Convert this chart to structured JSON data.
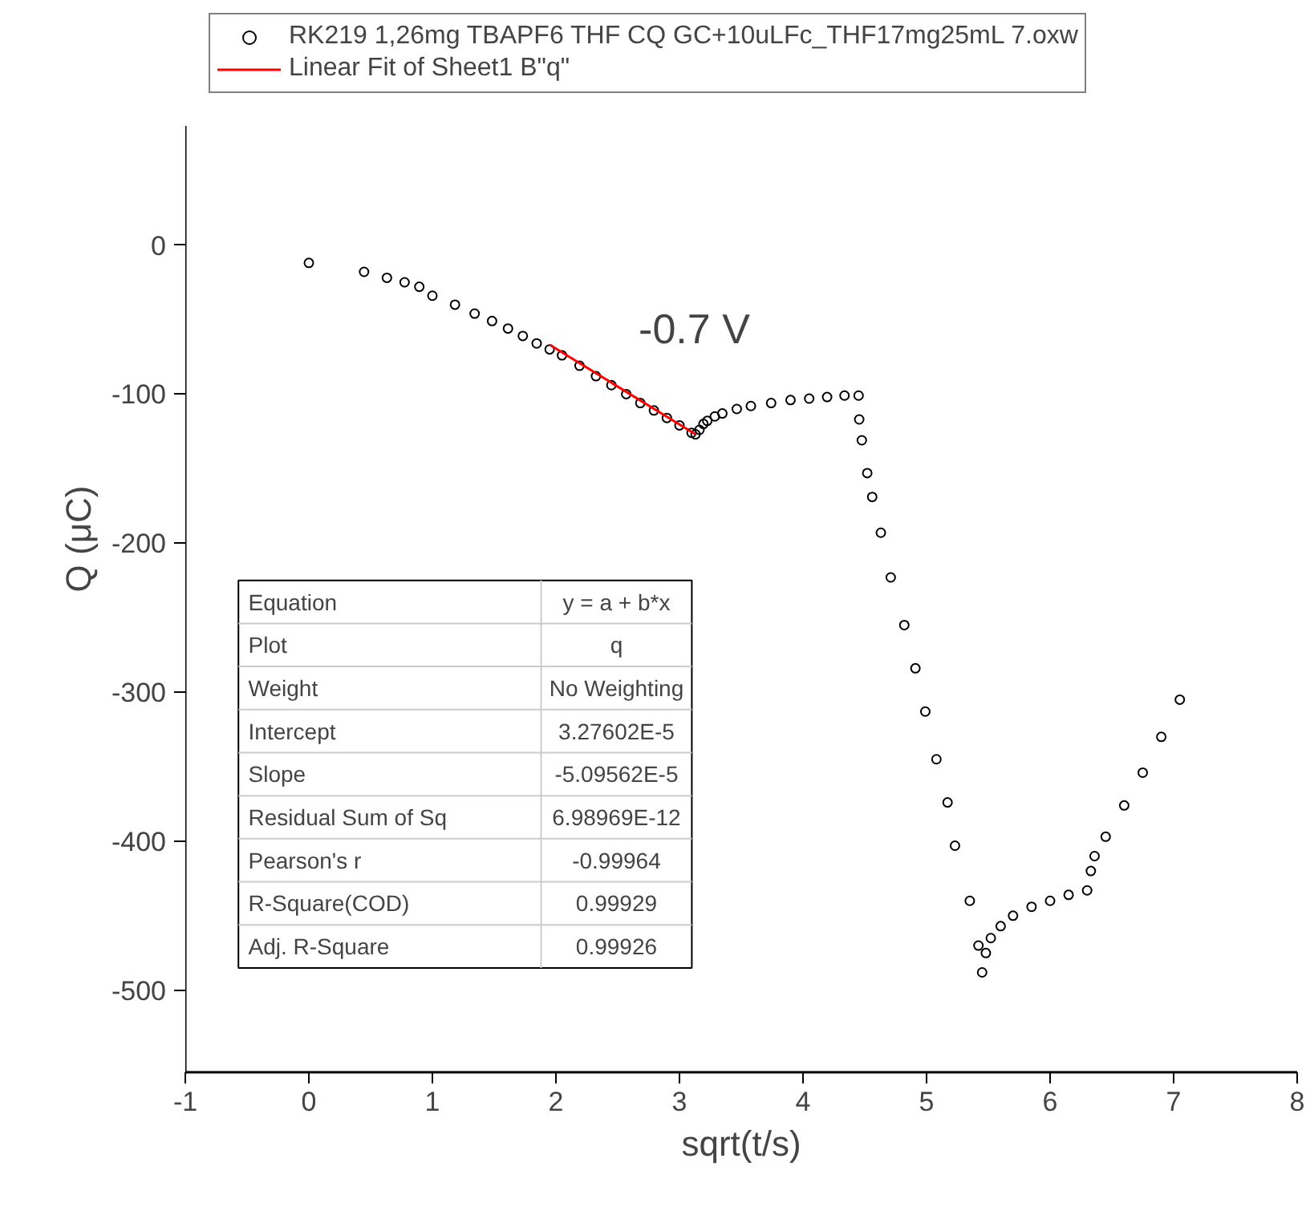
{
  "chart_data": {
    "type": "scatter",
    "xlabel": "sqrt(t/s)",
    "ylabel": "Q (μC)",
    "xlim": [
      -1,
      8
    ],
    "ylim": [
      -555,
      80
    ],
    "xticks": [
      -1,
      0,
      1,
      2,
      3,
      4,
      5,
      6,
      7,
      8
    ],
    "yticks": [
      -500,
      -400,
      -300,
      -200,
      -100,
      0
    ],
    "grid": false,
    "legend": "top",
    "series": [
      {
        "name": "RK219 1,26mg TBAPF6 THF CQ GC+10uLFc_THF17mg25mL 7.oxw",
        "color": "#000000",
        "marker": "circle",
        "x": [
          0,
          0.447,
          0.632,
          0.775,
          0.894,
          1.0,
          1.183,
          1.342,
          1.483,
          1.612,
          1.732,
          1.844,
          1.949,
          2.049,
          2.191,
          2.324,
          2.449,
          2.569,
          2.683,
          2.793,
          2.898,
          3.0,
          3.098,
          3.13,
          3.162,
          3.194,
          3.225,
          3.286,
          3.347,
          3.464,
          3.578,
          3.742,
          3.899,
          4.05,
          4.195,
          4.336,
          4.45,
          4.455,
          4.476,
          4.52,
          4.56,
          4.63,
          4.71,
          4.82,
          4.91,
          4.99,
          5.08,
          5.17,
          5.23,
          5.35,
          5.42,
          5.45,
          5.48,
          5.52,
          5.6,
          5.7,
          5.85,
          6.0,
          6.15,
          6.3,
          6.33,
          6.36,
          6.45,
          6.6,
          6.75,
          6.9,
          7.05
        ],
        "values": [
          -12,
          -18,
          -22,
          -25,
          -28,
          -34,
          -40,
          -46,
          -51,
          -56,
          -61,
          -66,
          -70,
          -74,
          -81,
          -88,
          -94,
          -100,
          -106,
          -111,
          -116,
          -121,
          -126,
          -127,
          -124,
          -120,
          -118,
          -115,
          -113,
          -110,
          -108,
          -106,
          -104,
          -103,
          -102,
          -101,
          -101,
          -117,
          -131,
          -153,
          -169,
          -193,
          -223,
          -255,
          -284,
          -313,
          -345,
          -374,
          -403,
          -440,
          -470,
          -488,
          -475,
          -465,
          -457,
          -450,
          -444,
          -440,
          -436,
          -433,
          -420,
          -410,
          -397,
          -376,
          -354,
          -330,
          -305
        ]
      },
      {
        "name": "Linear Fit of Sheet1 B\"q\"",
        "color": "#ff0000",
        "type": "line",
        "x": [
          1.95,
          3.13
        ],
        "values": [
          -67,
          -127
        ]
      }
    ],
    "annotations": [
      "-0.7 V",
      "Equation",
      "y = a + b*x",
      "Plot",
      "q",
      "Weight",
      "No Weighting",
      "Intercept",
      "3.27602E-5",
      "Slope",
      "-5.09562E-5",
      "Residual Sum of Sq",
      "6.98969E-12",
      "Pearson's r",
      "-0.99964",
      "R-Square(COD)",
      "0.99929",
      "Adj. R-Square",
      "0.99926"
    ]
  }
}
